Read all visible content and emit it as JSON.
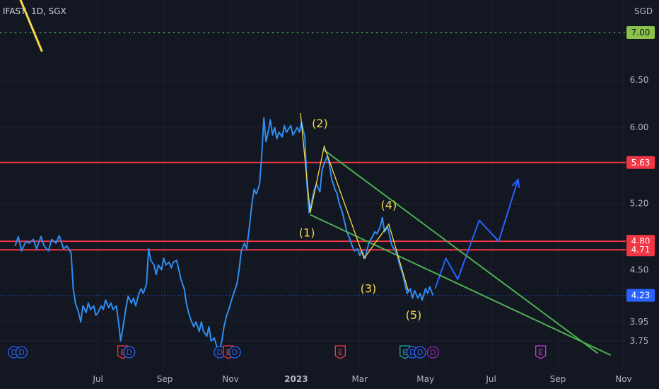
{
  "header": {
    "symbol_label": "IFAST, 1D, SGX"
  },
  "chart_data": {
    "type": "line",
    "currency": "SGD",
    "ylim": [
      3.6,
      7.2
    ],
    "grid": "on",
    "y_ticks": [
      {
        "value": 7.0,
        "label": "7.00"
      },
      {
        "value": 6.5,
        "label": "6.50"
      },
      {
        "value": 6.0,
        "label": "6.00"
      },
      {
        "value": 5.2,
        "label": "5.20"
      },
      {
        "value": 4.5,
        "label": "4.50"
      },
      {
        "value": 3.95,
        "label": "3.95"
      },
      {
        "value": 3.75,
        "label": "3.75"
      }
    ],
    "x_ticks": [
      "Jul",
      "Sep",
      "Nov",
      "2023",
      "Mar",
      "May",
      "Jul",
      "Sep",
      "Nov"
    ],
    "price_badges": [
      {
        "value": 7.0,
        "label": "7.00",
        "color": "#4caf50"
      },
      {
        "value": 5.63,
        "label": "5.63",
        "color": "#f23645"
      },
      {
        "value": 4.8,
        "label": "4.80",
        "color": "#f23645"
      },
      {
        "value": 4.71,
        "label": "4.71",
        "color": "#f23645"
      },
      {
        "value": 4.23,
        "label": "4.23",
        "color": "#2962ff"
      }
    ],
    "horizontal_lines": [
      {
        "value": 5.63,
        "color": "#f23645",
        "style": "solid"
      },
      {
        "value": 4.8,
        "color": "#f23645",
        "style": "solid"
      },
      {
        "value": 4.71,
        "color": "#f23645",
        "style": "solid"
      },
      {
        "value": 7.0,
        "color": "#4caf50",
        "style": "dotted"
      },
      {
        "value": 4.23,
        "color": "#2962ff",
        "style": "dotted"
      }
    ],
    "series": [
      {
        "color": "#2f8cf0",
        "points": [
          [
            "2022-04-15",
            4.75
          ],
          [
            "2022-04-18",
            4.85
          ],
          [
            "2022-04-21",
            4.7
          ],
          [
            "2022-04-25",
            4.8
          ],
          [
            "2022-04-28",
            4.78
          ],
          [
            "2022-05-02",
            4.82
          ],
          [
            "2022-05-05",
            4.72
          ],
          [
            "2022-05-09",
            4.85
          ],
          [
            "2022-05-12",
            4.75
          ],
          [
            "2022-05-16",
            4.7
          ],
          [
            "2022-05-19",
            4.82
          ],
          [
            "2022-05-23",
            4.78
          ],
          [
            "2022-05-26",
            4.86
          ],
          [
            "2022-05-30",
            4.72
          ],
          [
            "2022-06-02",
            4.75
          ],
          [
            "2022-06-06",
            4.68
          ],
          [
            "2022-06-08",
            4.3
          ],
          [
            "2022-06-10",
            4.15
          ],
          [
            "2022-06-13",
            4.05
          ],
          [
            "2022-06-15",
            3.95
          ],
          [
            "2022-06-17",
            4.12
          ],
          [
            "2022-06-20",
            4.05
          ],
          [
            "2022-06-22",
            4.15
          ],
          [
            "2022-06-24",
            4.08
          ],
          [
            "2022-06-27",
            4.12
          ],
          [
            "2022-06-29",
            4.02
          ],
          [
            "2022-07-01",
            4.05
          ],
          [
            "2022-07-04",
            4.12
          ],
          [
            "2022-07-06",
            4.08
          ],
          [
            "2022-07-08",
            4.18
          ],
          [
            "2022-07-11",
            4.1
          ],
          [
            "2022-07-13",
            4.15
          ],
          [
            "2022-07-15",
            4.08
          ],
          [
            "2022-07-18",
            4.12
          ],
          [
            "2022-07-20",
            3.95
          ],
          [
            "2022-07-22",
            3.75
          ],
          [
            "2022-07-25",
            3.95
          ],
          [
            "2022-07-27",
            4.1
          ],
          [
            "2022-07-29",
            4.22
          ],
          [
            "2022-08-01",
            4.15
          ],
          [
            "2022-08-03",
            4.2
          ],
          [
            "2022-08-05",
            4.12
          ],
          [
            "2022-08-08",
            4.25
          ],
          [
            "2022-08-10",
            4.3
          ],
          [
            "2022-08-12",
            4.25
          ],
          [
            "2022-08-15",
            4.35
          ],
          [
            "2022-08-17",
            4.72
          ],
          [
            "2022-08-19",
            4.6
          ],
          [
            "2022-08-22",
            4.55
          ],
          [
            "2022-08-24",
            4.45
          ],
          [
            "2022-08-26",
            4.55
          ],
          [
            "2022-08-29",
            4.5
          ],
          [
            "2022-08-31",
            4.62
          ],
          [
            "2022-09-02",
            4.55
          ],
          [
            "2022-09-05",
            4.58
          ],
          [
            "2022-09-07",
            4.52
          ],
          [
            "2022-09-09",
            4.58
          ],
          [
            "2022-09-12",
            4.6
          ],
          [
            "2022-09-14",
            4.5
          ],
          [
            "2022-09-16",
            4.4
          ],
          [
            "2022-09-19",
            4.3
          ],
          [
            "2022-09-21",
            4.15
          ],
          [
            "2022-09-23",
            4.05
          ],
          [
            "2022-09-26",
            3.95
          ],
          [
            "2022-09-28",
            3.9
          ],
          [
            "2022-09-30",
            3.95
          ],
          [
            "2022-10-03",
            3.85
          ],
          [
            "2022-10-05",
            3.95
          ],
          [
            "2022-10-07",
            3.85
          ],
          [
            "2022-10-10",
            3.8
          ],
          [
            "2022-10-12",
            3.9
          ],
          [
            "2022-10-14",
            3.75
          ],
          [
            "2022-10-17",
            3.78
          ],
          [
            "2022-10-19",
            3.7
          ],
          [
            "2022-10-21",
            3.62
          ],
          [
            "2022-10-24",
            3.75
          ],
          [
            "2022-10-26",
            3.9
          ],
          [
            "2022-10-28",
            4.0
          ],
          [
            "2022-10-31",
            4.1
          ],
          [
            "2022-11-02",
            4.18
          ],
          [
            "2022-11-04",
            4.25
          ],
          [
            "2022-11-07",
            4.35
          ],
          [
            "2022-11-09",
            4.5
          ],
          [
            "2022-11-11",
            4.7
          ],
          [
            "2022-11-14",
            4.78
          ],
          [
            "2022-11-16",
            4.72
          ],
          [
            "2022-11-18",
            4.9
          ],
          [
            "2022-11-21",
            5.2
          ],
          [
            "2022-11-23",
            5.35
          ],
          [
            "2022-11-25",
            5.3
          ],
          [
            "2022-11-28",
            5.4
          ],
          [
            "2022-11-30",
            5.7
          ],
          [
            "2022-12-02",
            6.1
          ],
          [
            "2022-12-04",
            5.85
          ],
          [
            "2022-12-06",
            5.95
          ],
          [
            "2022-12-08",
            6.08
          ],
          [
            "2022-12-10",
            5.92
          ],
          [
            "2022-12-12",
            6.0
          ],
          [
            "2022-12-14",
            5.88
          ],
          [
            "2022-12-16",
            5.95
          ],
          [
            "2022-12-19",
            5.9
          ],
          [
            "2022-12-21",
            6.02
          ],
          [
            "2022-12-23",
            5.95
          ],
          [
            "2022-12-27",
            6.02
          ],
          [
            "2022-12-29",
            5.92
          ],
          [
            "2023-01-02",
            6.0
          ],
          [
            "2023-01-04",
            5.95
          ],
          [
            "2023-01-06",
            6.05
          ],
          [
            "2023-01-09",
            5.9
          ],
          [
            "2023-01-11",
            5.4
          ],
          [
            "2023-01-13",
            5.1
          ],
          [
            "2023-01-16",
            5.25
          ],
          [
            "2023-01-18",
            5.35
          ],
          [
            "2023-01-20",
            5.4
          ],
          [
            "2023-01-23",
            5.32
          ],
          [
            "2023-01-25",
            5.55
          ],
          [
            "2023-01-27",
            5.62
          ],
          [
            "2023-01-30",
            5.7
          ],
          [
            "2023-02-01",
            5.6
          ],
          [
            "2023-02-03",
            5.45
          ],
          [
            "2023-02-06",
            5.35
          ],
          [
            "2023-02-08",
            5.3
          ],
          [
            "2023-02-10",
            5.2
          ],
          [
            "2023-02-13",
            5.1
          ],
          [
            "2023-02-15",
            5.0
          ],
          [
            "2023-02-17",
            4.9
          ],
          [
            "2023-02-20",
            4.82
          ],
          [
            "2023-02-22",
            4.75
          ],
          [
            "2023-02-24",
            4.7
          ],
          [
            "2023-02-27",
            4.72
          ],
          [
            "2023-03-01",
            4.65
          ],
          [
            "2023-03-03",
            4.7
          ],
          [
            "2023-03-06",
            4.62
          ],
          [
            "2023-03-08",
            4.72
          ],
          [
            "2023-03-10",
            4.8
          ],
          [
            "2023-03-13",
            4.85
          ],
          [
            "2023-03-15",
            4.9
          ],
          [
            "2023-03-17",
            4.88
          ],
          [
            "2023-03-20",
            4.95
          ],
          [
            "2023-03-22",
            5.05
          ],
          [
            "2023-03-24",
            4.9
          ],
          [
            "2023-03-27",
            4.95
          ],
          [
            "2023-03-29",
            4.85
          ],
          [
            "2023-03-31",
            4.75
          ],
          [
            "2023-04-03",
            4.7
          ],
          [
            "2023-04-05",
            4.65
          ],
          [
            "2023-04-07",
            4.55
          ],
          [
            "2023-04-10",
            4.45
          ],
          [
            "2023-04-12",
            4.35
          ],
          [
            "2023-04-14",
            4.25
          ],
          [
            "2023-04-17",
            4.3
          ],
          [
            "2023-04-19",
            4.2
          ],
          [
            "2023-04-21",
            4.28
          ],
          [
            "2023-04-24",
            4.2
          ],
          [
            "2023-04-26",
            4.25
          ],
          [
            "2023-04-28",
            4.18
          ],
          [
            "2023-05-01",
            4.3
          ],
          [
            "2023-05-03",
            4.25
          ],
          [
            "2023-05-05",
            4.32
          ],
          [
            "2023-05-08",
            4.23
          ]
        ]
      },
      {
        "color": "#2962ff",
        "style": "projection",
        "points": [
          [
            "2023-05-10",
            4.3
          ],
          [
            "2023-05-20",
            4.62
          ],
          [
            "2023-05-31",
            4.4
          ],
          [
            "2023-06-20",
            5.02
          ],
          [
            "2023-07-08",
            4.8
          ],
          [
            "2023-07-26",
            5.45
          ]
        ]
      }
    ],
    "annotations": {
      "wave_labels": [
        {
          "text": "(1)",
          "x": "2023-01-11",
          "y": 4.85,
          "color": "#f5d94a"
        },
        {
          "text": "(2)",
          "x": "2023-01-23",
          "y": 6.0,
          "color": "#f5d94a"
        },
        {
          "text": "(3)",
          "x": "2023-03-09",
          "y": 4.26,
          "color": "#f5d94a"
        },
        {
          "text": "(4)",
          "x": "2023-03-28",
          "y": 5.14,
          "color": "#f5d94a"
        },
        {
          "text": "(5)",
          "x": "2023-04-20",
          "y": 3.98,
          "color": "#f5d94a"
        }
      ],
      "wave_path": {
        "color": "#f5d94a",
        "points": [
          [
            "2023-01-05",
            6.15
          ],
          [
            "2023-01-14",
            5.1
          ],
          [
            "2023-01-27",
            5.8
          ],
          [
            "2023-03-05",
            4.62
          ],
          [
            "2023-03-28",
            4.98
          ],
          [
            "2023-04-15",
            4.28
          ]
        ]
      },
      "channel_lines": [
        {
          "color": "#4caf50",
          "from": [
            "2023-01-27",
            5.76
          ],
          "to": [
            "2023-10-08",
            3.62
          ]
        },
        {
          "color": "#4caf50",
          "from": [
            "2023-01-14",
            5.08
          ],
          "to": [
            "2023-10-20",
            3.6
          ]
        }
      ],
      "yellow_diagonal": {
        "color": "#f5d94a",
        "from": [
          "2022-04-18",
          7.4
        ],
        "to": [
          "2022-05-10",
          6.8
        ]
      },
      "event_markers": [
        {
          "x": "2022-04-14",
          "text": "D",
          "color": "#2962ff"
        },
        {
          "x": "2022-04-21",
          "text": "D",
          "color": "#2962ff"
        },
        {
          "x": "2022-07-24",
          "text": "E",
          "color": "#f23645"
        },
        {
          "x": "2022-07-30",
          "text": "D",
          "color": "#2962ff"
        },
        {
          "x": "2022-10-22",
          "text": "D",
          "color": "#2962ff"
        },
        {
          "x": "2022-10-30",
          "text": "E",
          "color": "#f23645"
        },
        {
          "x": "2022-11-05",
          "text": "D",
          "color": "#2962ff"
        },
        {
          "x": "2023-02-11",
          "text": "E",
          "color": "#f23645"
        },
        {
          "x": "2023-04-12",
          "text": "E",
          "color": "#26a69a"
        },
        {
          "x": "2023-04-19",
          "text": "D",
          "color": "#2962ff"
        },
        {
          "x": "2023-04-26",
          "text": "D",
          "color": "#2962ff"
        },
        {
          "x": "2023-05-08",
          "text": "D",
          "color": "#9c27b0"
        },
        {
          "x": "2023-08-16",
          "text": "E",
          "color": "#c535e0"
        }
      ]
    }
  }
}
